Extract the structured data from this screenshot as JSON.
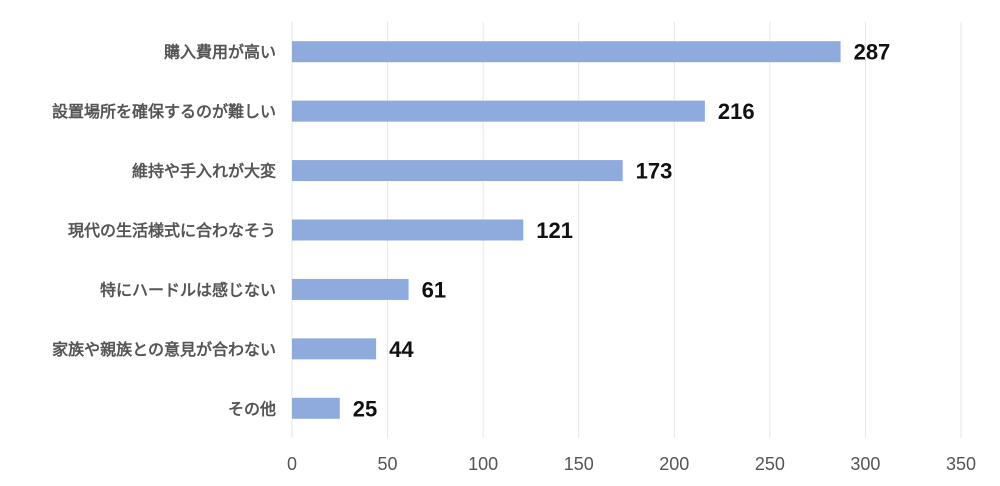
{
  "chart_data": {
    "type": "bar",
    "orientation": "horizontal",
    "title": "",
    "xlabel": "",
    "ylabel": "",
    "categories": [
      "購入費用が高い",
      "設置場所を確保するのが難しい",
      "維持や手入れが大変",
      "現代の生活様式に合わなそう",
      "特にハードルは感じない",
      "家族や親族との意見が合わない",
      "その他"
    ],
    "values": [
      287,
      216,
      173,
      121,
      61,
      44,
      25
    ],
    "xlim": [
      0,
      350
    ],
    "xticks": [
      0,
      50,
      100,
      150,
      200,
      250,
      300,
      350
    ],
    "grid": true,
    "legend": "none",
    "bar_color": "#8FAADC",
    "grid_color": "#E6E6E6"
  }
}
